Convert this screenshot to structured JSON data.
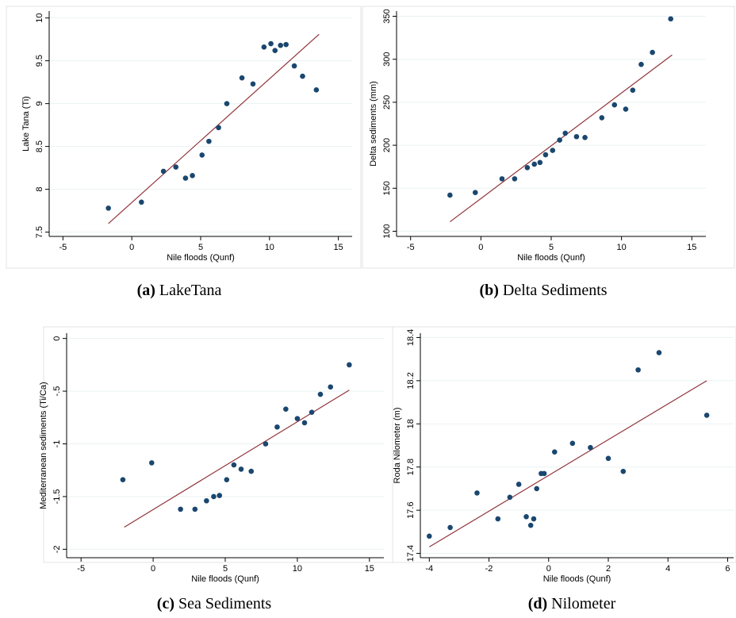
{
  "chart_data": [
    {
      "type": "scatter",
      "caption_letter": "(a)",
      "caption_text": "LakeTana",
      "xlabel": "Nile floods (Qunf)",
      "ylabel": "Lake Tana (Ti)",
      "xlim": [
        -6.0,
        16.0
      ],
      "ylim": [
        7.45,
        10.08
      ],
      "xticks": [
        -5,
        0,
        5,
        10,
        15
      ],
      "yticks": [
        7.5,
        8,
        8.5,
        9,
        9.5,
        10
      ],
      "ytick_labels": [
        "7.5",
        "8",
        "8.5",
        "9",
        "9.5",
        "10"
      ],
      "grid": true,
      "point_color": "#1a476f",
      "line_color": "#90353b",
      "points": [
        {
          "x": -1.7,
          "y": 7.78
        },
        {
          "x": 0.7,
          "y": 7.85
        },
        {
          "x": 2.3,
          "y": 8.21
        },
        {
          "x": 3.2,
          "y": 8.26
        },
        {
          "x": 3.9,
          "y": 8.13
        },
        {
          "x": 4.4,
          "y": 8.16
        },
        {
          "x": 5.1,
          "y": 8.4
        },
        {
          "x": 5.6,
          "y": 8.56
        },
        {
          "x": 6.3,
          "y": 8.72
        },
        {
          "x": 6.9,
          "y": 9.0
        },
        {
          "x": 8.0,
          "y": 9.3
        },
        {
          "x": 8.8,
          "y": 9.23
        },
        {
          "x": 9.6,
          "y": 9.66
        },
        {
          "x": 10.1,
          "y": 9.7
        },
        {
          "x": 10.4,
          "y": 9.62
        },
        {
          "x": 10.8,
          "y": 9.68
        },
        {
          "x": 11.2,
          "y": 9.69
        },
        {
          "x": 11.8,
          "y": 9.44
        },
        {
          "x": 12.4,
          "y": 9.32
        },
        {
          "x": 13.4,
          "y": 9.16
        }
      ],
      "fit_line": [
        {
          "x": -1.7,
          "y": 7.6
        },
        {
          "x": 13.6,
          "y": 9.81
        }
      ]
    },
    {
      "type": "scatter",
      "caption_letter": "(b)",
      "caption_text": "Delta Sediments",
      "xlabel": "Nile floods (Qunf)",
      "ylabel": "Delta sediments (mm)",
      "xlim": [
        -6.0,
        16.0
      ],
      "ylim": [
        94,
        356
      ],
      "xticks": [
        -5,
        0,
        5,
        10,
        15
      ],
      "yticks": [
        100,
        150,
        200,
        250,
        300,
        350
      ],
      "ytick_labels": [
        "100",
        "150",
        "200",
        "250",
        "300",
        "350"
      ],
      "grid": true,
      "point_color": "#1a476f",
      "line_color": "#90353b",
      "points": [
        {
          "x": -2.2,
          "y": 142
        },
        {
          "x": -0.4,
          "y": 145
        },
        {
          "x": 1.5,
          "y": 161
        },
        {
          "x": 2.4,
          "y": 161
        },
        {
          "x": 3.3,
          "y": 174
        },
        {
          "x": 3.8,
          "y": 178
        },
        {
          "x": 4.2,
          "y": 180
        },
        {
          "x": 4.6,
          "y": 189
        },
        {
          "x": 5.1,
          "y": 194
        },
        {
          "x": 5.6,
          "y": 206
        },
        {
          "x": 6.0,
          "y": 214
        },
        {
          "x": 6.8,
          "y": 210
        },
        {
          "x": 7.4,
          "y": 209
        },
        {
          "x": 8.6,
          "y": 232
        },
        {
          "x": 9.5,
          "y": 247
        },
        {
          "x": 10.3,
          "y": 242
        },
        {
          "x": 10.8,
          "y": 264
        },
        {
          "x": 11.4,
          "y": 294
        },
        {
          "x": 12.2,
          "y": 308
        },
        {
          "x": 13.5,
          "y": 347
        }
      ],
      "fit_line": [
        {
          "x": -2.2,
          "y": 111
        },
        {
          "x": 13.6,
          "y": 305
        }
      ]
    },
    {
      "type": "scatter",
      "caption_letter": "(c)",
      "caption_text": "Sea Sediments",
      "xlabel": "Nile floods (Qunf)",
      "ylabel": "Mediterranean sediments (Ti/Ca)",
      "xlim": [
        -6.0,
        16.0
      ],
      "ylim": [
        -2.08,
        0.05
      ],
      "xticks": [
        -5,
        0,
        5,
        10,
        15
      ],
      "yticks": [
        -2,
        -1.5,
        -1,
        -0.5,
        0
      ],
      "ytick_labels": [
        "-2",
        "-1.5",
        "-1",
        "-.5",
        "0"
      ],
      "grid": true,
      "point_color": "#1a476f",
      "line_color": "#90353b",
      "points": [
        {
          "x": -2.1,
          "y": -1.34
        },
        {
          "x": -0.1,
          "y": -1.18
        },
        {
          "x": 1.9,
          "y": -1.62
        },
        {
          "x": 2.9,
          "y": -1.62
        },
        {
          "x": 3.7,
          "y": -1.54
        },
        {
          "x": 4.2,
          "y": -1.5
        },
        {
          "x": 4.6,
          "y": -1.49
        },
        {
          "x": 5.1,
          "y": -1.34
        },
        {
          "x": 5.6,
          "y": -1.2
        },
        {
          "x": 6.1,
          "y": -1.24
        },
        {
          "x": 6.8,
          "y": -1.26
        },
        {
          "x": 7.8,
          "y": -1.0
        },
        {
          "x": 8.6,
          "y": -0.84
        },
        {
          "x": 9.2,
          "y": -0.67
        },
        {
          "x": 10.0,
          "y": -0.76
        },
        {
          "x": 10.5,
          "y": -0.8
        },
        {
          "x": 11.0,
          "y": -0.7
        },
        {
          "x": 11.6,
          "y": -0.53
        },
        {
          "x": 12.3,
          "y": -0.46
        },
        {
          "x": 13.6,
          "y": -0.25
        }
      ],
      "fit_line": [
        {
          "x": -2.0,
          "y": -1.79
        },
        {
          "x": 13.6,
          "y": -0.49
        }
      ]
    },
    {
      "type": "scatter",
      "caption_letter": "(d)",
      "caption_text": "Nilometer",
      "xlabel": "Nile floods (Qunf)",
      "ylabel": "Roda Nilometer (m)",
      "xlim": [
        -4.3,
        6.2
      ],
      "ylim": [
        17.38,
        18.42
      ],
      "xticks": [
        -4,
        -2,
        0,
        2,
        4,
        6
      ],
      "yticks": [
        17.4,
        17.6,
        17.8,
        18,
        18.2,
        18.4
      ],
      "ytick_labels": [
        "17.4",
        "17.6",
        "17.8",
        "18",
        "18.2",
        "18.4"
      ],
      "grid": true,
      "point_color": "#1a476f",
      "line_color": "#90353b",
      "points": [
        {
          "x": -4.0,
          "y": 17.48
        },
        {
          "x": -3.3,
          "y": 17.52
        },
        {
          "x": -2.4,
          "y": 17.68
        },
        {
          "x": -1.7,
          "y": 17.56
        },
        {
          "x": -1.3,
          "y": 17.66
        },
        {
          "x": -1.0,
          "y": 17.72
        },
        {
          "x": -0.75,
          "y": 17.57
        },
        {
          "x": -0.6,
          "y": 17.53
        },
        {
          "x": -0.5,
          "y": 17.56
        },
        {
          "x": -0.4,
          "y": 17.7
        },
        {
          "x": -0.25,
          "y": 17.77
        },
        {
          "x": -0.15,
          "y": 17.77
        },
        {
          "x": 0.2,
          "y": 17.87
        },
        {
          "x": 0.8,
          "y": 17.91
        },
        {
          "x": 1.4,
          "y": 17.89
        },
        {
          "x": 2.0,
          "y": 17.84
        },
        {
          "x": 2.5,
          "y": 17.78
        },
        {
          "x": 3.0,
          "y": 18.25
        },
        {
          "x": 3.7,
          "y": 18.33
        },
        {
          "x": 5.3,
          "y": 18.04
        }
      ],
      "fit_line": [
        {
          "x": -4.0,
          "y": 17.43
        },
        {
          "x": 5.3,
          "y": 18.2
        }
      ]
    }
  ]
}
